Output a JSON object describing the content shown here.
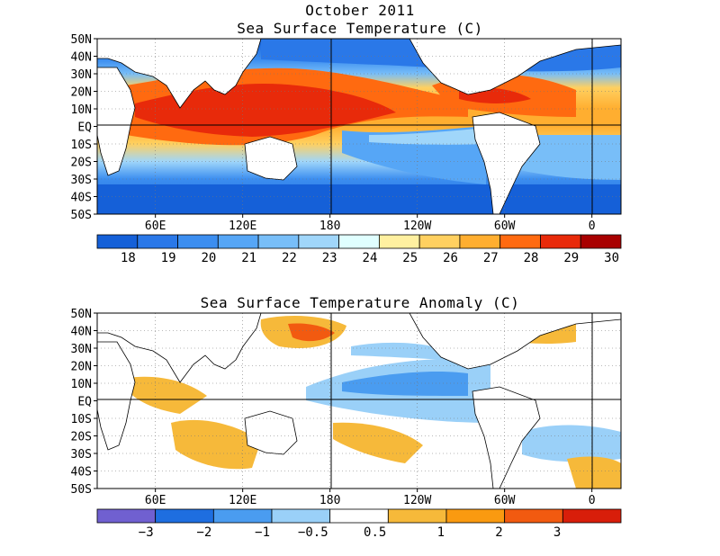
{
  "title": "October 2011",
  "panels": [
    {
      "id": "sst",
      "title": "Sea Surface Temperature (C)",
      "lat_labels": [
        "50N",
        "40N",
        "30N",
        "20N",
        "10N",
        "EQ",
        "10S",
        "20S",
        "30S",
        "40S",
        "50S"
      ],
      "lon_labels": [
        "60E",
        "120E",
        "180",
        "120W",
        "60W",
        "0"
      ],
      "colorbar": {
        "colors": [
          "#1560d8",
          "#2a78e8",
          "#3c8ef0",
          "#56a6f6",
          "#78bef8",
          "#a0d6fa",
          "#e0ffff",
          "#fff0a0",
          "#ffd060",
          "#ffae30",
          "#ff6a10",
          "#e82a0a",
          "#a80000"
        ],
        "labels": [
          "18",
          "19",
          "20",
          "21",
          "22",
          "23",
          "24",
          "25",
          "26",
          "27",
          "28",
          "29",
          "30"
        ]
      }
    },
    {
      "id": "anom",
      "title": "Sea Surface Temperature Anomaly (C)",
      "lat_labels": [
        "50N",
        "40N",
        "30N",
        "20N",
        "10N",
        "EQ",
        "10S",
        "20S",
        "30S",
        "40S",
        "50S"
      ],
      "lon_labels": [
        "60E",
        "120E",
        "180",
        "120W",
        "60W",
        "0"
      ],
      "colorbar": {
        "colors": [
          "#7060d0",
          "#1e6ee0",
          "#4a9cf0",
          "#9ad0f8",
          "#ffffff",
          "#f6b93a",
          "#fa9a10",
          "#f25a10",
          "#d81e0a"
        ],
        "labels": [
          "−3",
          "−2",
          "−1",
          "−0.5",
          "0.5",
          "1",
          "2",
          "3"
        ]
      }
    }
  ]
}
